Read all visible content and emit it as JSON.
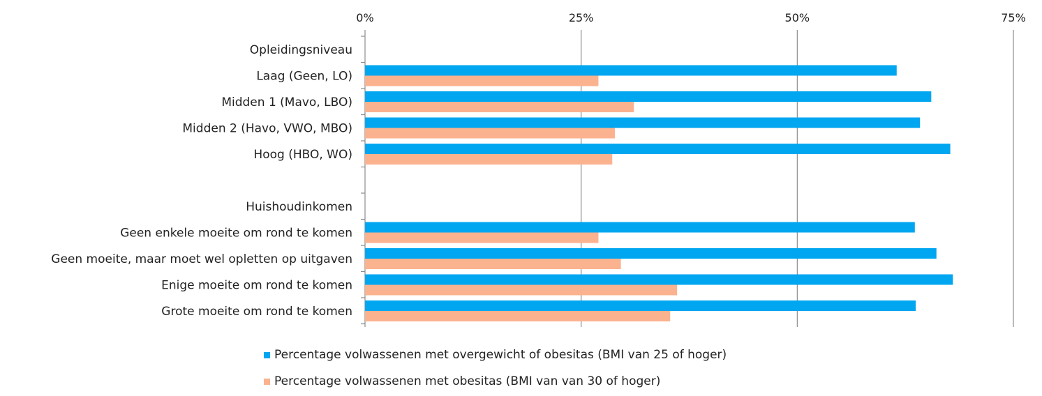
{
  "chart_data": {
    "type": "bar",
    "orientation": "horizontal",
    "categories": [
      "Opleidingsniveau",
      "Laag (Geen, LO)",
      "Midden 1 (Mavo, LBO)",
      "Midden 2 (Havo, VWO, MBO)",
      "Hoog (HBO, WO)",
      "",
      "Huishoudinkomen",
      "Geen enkele moeite om rond te komen",
      "Geen moeite, maar moet wel opletten op uitgaven",
      "Enige moeite om rond te komen",
      "Grote moeite om rond te komen"
    ],
    "series": [
      {
        "name": "Percentage volwassenen met overgewicht of obesitas (BMI van 25 of hoger)",
        "color": "#00A6F0",
        "values": [
          null,
          61.5,
          65.5,
          64.2,
          67.7,
          null,
          null,
          63.6,
          66.1,
          68.0,
          63.7
        ]
      },
      {
        "name": "Percentage volwassenen met obesitas (BMI van van 30 of hoger)",
        "color": "#FBB28F",
        "values": [
          null,
          27.0,
          31.1,
          28.9,
          28.6,
          null,
          null,
          27.0,
          29.6,
          36.1,
          35.3
        ]
      }
    ],
    "xlim": [
      0,
      75
    ],
    "ticks": [
      0,
      25,
      50,
      75
    ],
    "tick_labels": [
      "0%",
      "25%",
      "50%",
      "75%"
    ],
    "axis_position": "top",
    "grid": true,
    "legend_position": "bottom"
  }
}
